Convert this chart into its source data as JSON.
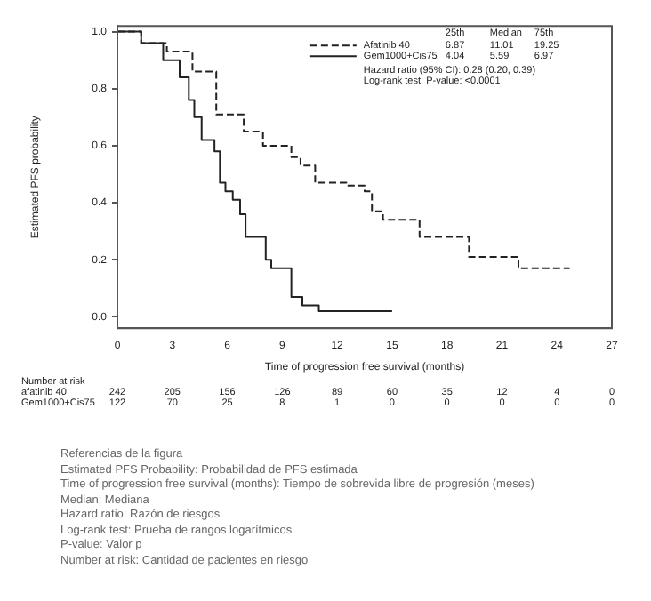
{
  "chart_data": {
    "type": "step",
    "xlabel": "Time of progression free survival (months)",
    "ylabel": "Estimated PFS probability",
    "xlim": [
      0,
      27
    ],
    "xticks": [
      0,
      3,
      6,
      9,
      12,
      15,
      18,
      21,
      24,
      27
    ],
    "ylim": [
      -0.04,
      1.02
    ],
    "yticks": [
      {
        "value": 0,
        "label": "0.0"
      },
      {
        "value": 0.2,
        "label": "0.2"
      },
      {
        "value": 0.4,
        "label": "0.4"
      },
      {
        "value": 0.6,
        "label": "0.6"
      },
      {
        "value": 0.8,
        "label": "0.8"
      },
      {
        "value": 1,
        "label": "1.0"
      }
    ],
    "series": [
      {
        "name": "Afatinib 40",
        "color": "#222222",
        "line_style": "dashed",
        "x": [
          0,
          1.3,
          2.7,
          4.1,
          5.4,
          6.9,
          7.95,
          9.5,
          10,
          10.8,
          12.5,
          13.5,
          13.9,
          14.5,
          16.5,
          19.2,
          21.9,
          24.7
        ],
        "values": [
          1,
          0.96,
          0.93,
          0.86,
          0.71,
          0.65,
          0.6,
          0.56,
          0.53,
          0.47,
          0.46,
          0.44,
          0.37,
          0.34,
          0.28,
          0.21,
          0.17,
          0.17
        ]
      },
      {
        "name": "Gem1000+Cis75",
        "color": "#222222",
        "line_style": "solid",
        "x": [
          0,
          1.3,
          2.5,
          3.4,
          3.9,
          4.2,
          4.6,
          5.3,
          5.6,
          5.9,
          6.3,
          6.7,
          7,
          8.1,
          8.4,
          9.5,
          10.1,
          11,
          15
        ],
        "values": [
          1,
          0.96,
          0.9,
          0.84,
          0.76,
          0.7,
          0.62,
          0.58,
          0.47,
          0.44,
          0.41,
          0.36,
          0.28,
          0.2,
          0.17,
          0.07,
          0.04,
          0.02,
          0.02
        ]
      }
    ],
    "legend": "top right",
    "grid": false,
    "marker": "none",
    "annotations": [
      "25th Median 75th",
      "6.87 11.01 19.25",
      "4.04 5.59 6.97",
      "Hazard ratio (95% CI): 0.28 (0.20, 0.39)",
      "Log-rank test: P-value: <0.0001",
      "Number at risk",
      "afatinib 40",
      "242 205 156 126 89 60 35 12 4 0",
      "Gem1000+Cis75",
      "122 70 25 8 1 0 0 0 0 0",
      "Referencias de la figura",
      "Estimated PFS Probability: Probabilidad de PFS estimada",
      "Time of progression free survival (months): Tiempo de sobrevida libre de progresión (meses)",
      "Median: Mediana",
      "Hazard ratio: Razón de riesgos",
      "Log-rank test: Prueba de rangos logarítmicos",
      "P-value: Valor p",
      "Number at risk: Cantidad de pacientes en riesgo"
    ]
  }
}
